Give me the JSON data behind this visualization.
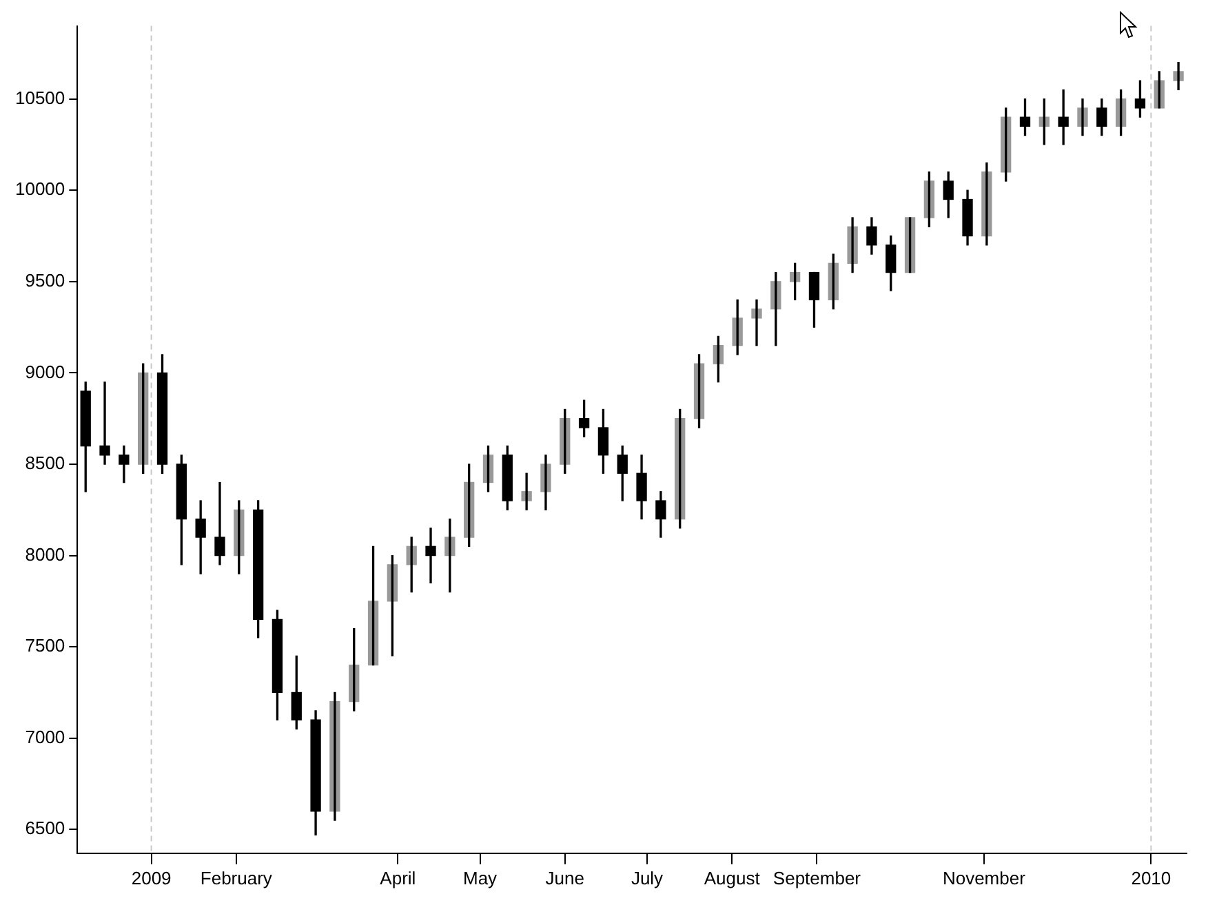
{
  "chart_data": {
    "type": "candlestick",
    "color": "#000000",
    "colors": [
      "#000000",
      "#000000",
      "#000000",
      "#999999",
      "#000000",
      "#000000",
      "#000000",
      "#000000",
      "#999999",
      "#000000",
      "#000000",
      "#000000",
      "#000000",
      "#999999",
      "#999999",
      "#999999",
      "#999999",
      "#999999",
      "#000000",
      "#999999",
      "#999999",
      "#999999",
      "#000000",
      "#999999",
      "#999999",
      "#999999",
      "#000000",
      "#000000",
      "#000000",
      "#000000",
      "#000000",
      "#999999",
      "#999999",
      "#999999",
      "#999999",
      "#999999",
      "#999999",
      "#999999",
      "#000000",
      "#999999",
      "#999999",
      "#000000",
      "#000000",
      "#999999",
      "#999999",
      "#000000",
      "#000000",
      "#999999",
      "#999999",
      "#000000",
      "#999999",
      "#000000",
      "#999999",
      "#000000",
      "#999999",
      "#000000",
      "#999999",
      "#999999"
    ],
    "x": [
      "2008-12-08",
      "2008-12-15",
      "2008-12-22",
      "2008-12-29",
      "2009-01-05",
      "2009-01-12",
      "2009-01-19",
      "2009-01-26",
      "2009-02-02",
      "2009-02-09",
      "2009-02-16",
      "2009-02-23",
      "2009-03-02",
      "2009-03-09",
      "2009-03-16",
      "2009-03-23",
      "2009-03-30",
      "2009-04-06",
      "2009-04-13",
      "2009-04-20",
      "2009-04-27",
      "2009-05-04",
      "2009-05-11",
      "2009-05-18",
      "2009-05-25",
      "2009-06-01",
      "2009-06-08",
      "2009-06-15",
      "2009-06-22",
      "2009-06-29",
      "2009-07-06",
      "2009-07-13",
      "2009-07-20",
      "2009-07-27",
      "2009-08-03",
      "2009-08-10",
      "2009-08-17",
      "2009-08-24",
      "2009-08-31",
      "2009-09-07",
      "2009-09-14",
      "2009-09-21",
      "2009-09-28",
      "2009-10-05",
      "2009-10-12",
      "2009-10-19",
      "2009-10-26",
      "2009-11-02",
      "2009-11-09",
      "2009-11-16",
      "2009-11-23",
      "2009-11-30",
      "2009-12-07",
      "2009-12-14",
      "2009-12-21",
      "2009-12-28",
      "2010-01-04",
      "2010-01-11"
    ],
    "ohlc": [
      [
        8900,
        8950,
        8350,
        8600
      ],
      [
        8600,
        8950,
        8500,
        8550
      ],
      [
        8550,
        8600,
        8400,
        8500
      ],
      [
        8500,
        9050,
        8450,
        9000
      ],
      [
        9000,
        9100,
        8450,
        8500
      ],
      [
        8500,
        8550,
        7950,
        8200
      ],
      [
        8200,
        8300,
        7900,
        8100
      ],
      [
        8100,
        8400,
        7950,
        8000
      ],
      [
        8000,
        8300,
        7900,
        8250
      ],
      [
        8250,
        8300,
        7550,
        7650
      ],
      [
        7650,
        7700,
        7100,
        7250
      ],
      [
        7250,
        7450,
        7050,
        7100
      ],
      [
        7100,
        7150,
        6470,
        6600
      ],
      [
        6600,
        7250,
        6550,
        7200
      ],
      [
        7200,
        7600,
        7150,
        7400
      ],
      [
        7400,
        8050,
        7400,
        7750
      ],
      [
        7750,
        8000,
        7450,
        7950
      ],
      [
        7950,
        8100,
        7800,
        8050
      ],
      [
        8050,
        8150,
        7850,
        8000
      ],
      [
        8000,
        8200,
        7800,
        8100
      ],
      [
        8100,
        8500,
        8050,
        8400
      ],
      [
        8400,
        8600,
        8350,
        8550
      ],
      [
        8550,
        8600,
        8250,
        8300
      ],
      [
        8300,
        8450,
        8250,
        8350
      ],
      [
        8350,
        8550,
        8250,
        8500
      ],
      [
        8500,
        8800,
        8450,
        8750
      ],
      [
        8750,
        8850,
        8650,
        8700
      ],
      [
        8700,
        8800,
        8450,
        8550
      ],
      [
        8550,
        8600,
        8300,
        8450
      ],
      [
        8450,
        8550,
        8200,
        8300
      ],
      [
        8300,
        8350,
        8100,
        8200
      ],
      [
        8200,
        8800,
        8150,
        8750
      ],
      [
        8750,
        9100,
        8700,
        9050
      ],
      [
        9050,
        9200,
        8950,
        9150
      ],
      [
        9150,
        9400,
        9100,
        9300
      ],
      [
        9300,
        9400,
        9150,
        9350
      ],
      [
        9350,
        9550,
        9150,
        9500
      ],
      [
        9500,
        9600,
        9400,
        9550
      ],
      [
        9550,
        9550,
        9250,
        9400
      ],
      [
        9400,
        9650,
        9350,
        9600
      ],
      [
        9600,
        9850,
        9550,
        9800
      ],
      [
        9800,
        9850,
        9650,
        9700
      ],
      [
        9700,
        9750,
        9450,
        9550
      ],
      [
        9550,
        9850,
        9550,
        9850
      ],
      [
        9850,
        10100,
        9800,
        10050
      ],
      [
        10050,
        10100,
        9850,
        9950
      ],
      [
        9950,
        10000,
        9700,
        9750
      ],
      [
        9750,
        10150,
        9700,
        10100
      ],
      [
        10100,
        10450,
        10050,
        10400
      ],
      [
        10400,
        10500,
        10300,
        10350
      ],
      [
        10350,
        10500,
        10250,
        10400
      ],
      [
        10400,
        10550,
        10250,
        10350
      ],
      [
        10350,
        10500,
        10300,
        10450
      ],
      [
        10450,
        10500,
        10300,
        10350
      ],
      [
        10350,
        10550,
        10300,
        10500
      ],
      [
        10500,
        10600,
        10400,
        10450
      ],
      [
        10450,
        10650,
        10450,
        10600
      ],
      [
        10600,
        10700,
        10550,
        10650
      ]
    ],
    "xlim": [
      "2008-12-05",
      "2010-01-14"
    ],
    "xticks": [
      {
        "value": "2009-01-01",
        "label": "2009"
      },
      {
        "value": "2009-02-01",
        "label": "February"
      },
      {
        "value": "2009-04-01",
        "label": "April"
      },
      {
        "value": "2009-05-01",
        "label": "May"
      },
      {
        "value": "2009-06-01",
        "label": "June"
      },
      {
        "value": "2009-07-01",
        "label": "July"
      },
      {
        "value": "2009-08-01",
        "label": "August"
      },
      {
        "value": "2009-09-01",
        "label": "September"
      },
      {
        "value": "2009-11-01",
        "label": "November"
      },
      {
        "value": "2010-01-01",
        "label": "2010"
      }
    ],
    "ylim": [
      6370,
      10900
    ],
    "yticks": [
      6500,
      7000,
      7500,
      8000,
      8500,
      9000,
      9500,
      10000,
      10500
    ],
    "ref_lines": [
      {
        "axis": "x",
        "value": "2009-01-01",
        "color": "#c8c8c8",
        "line_style": "dashed"
      },
      {
        "axis": "x",
        "value": "2010-01-01",
        "color": "#c8c8c8",
        "line_style": "dashed"
      }
    ],
    "grid": false,
    "legend": false
  }
}
